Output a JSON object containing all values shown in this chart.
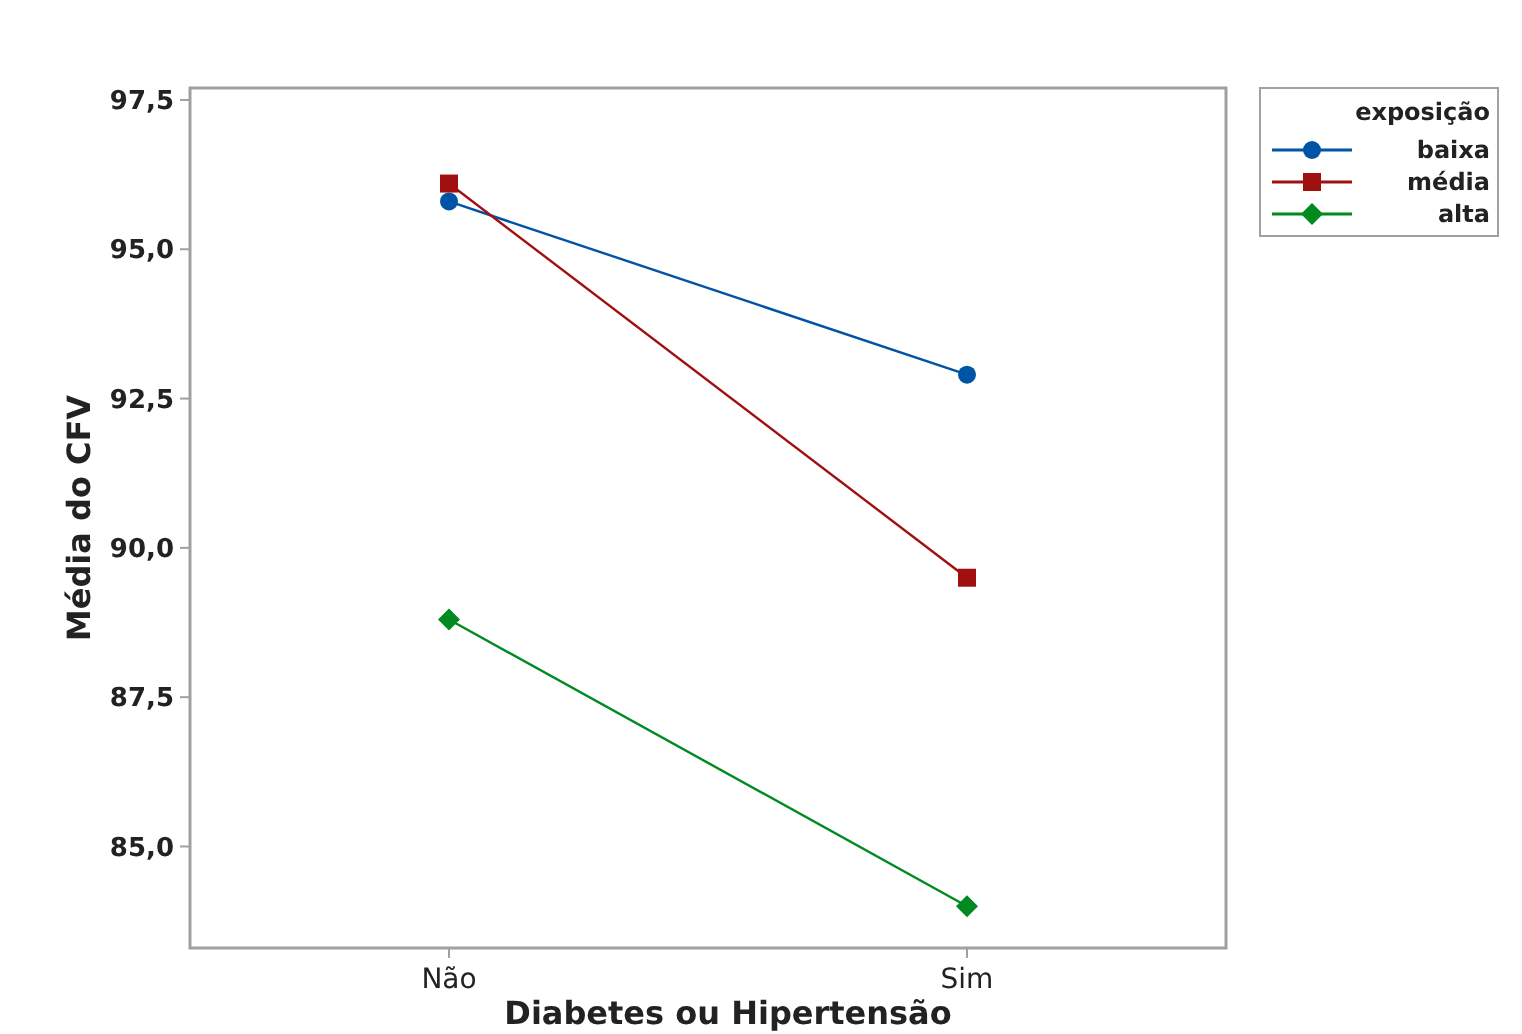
{
  "chart_data": {
    "type": "line",
    "xlabel": "Diabetes ou Hipertensão",
    "ylabel": "Média do CFV",
    "legend_title": "exposição",
    "categories": [
      "Não",
      "Sim"
    ],
    "series": [
      {
        "name": "baixa",
        "color": "#0054a6",
        "marker": "circle",
        "values": [
          95.8,
          92.9
        ]
      },
      {
        "name": "média",
        "color": "#a01010",
        "marker": "square",
        "values": [
          96.1,
          89.5
        ]
      },
      {
        "name": "alta",
        "color": "#008a20",
        "marker": "diamond",
        "values": [
          88.8,
          84.0
        ]
      }
    ],
    "ylim": [
      83.3,
      97.7
    ],
    "yticks": [
      {
        "value": 85,
        "label": "85,0"
      },
      {
        "value": 87.5,
        "label": "87,5"
      },
      {
        "value": 90,
        "label": "90,0"
      },
      {
        "value": 92.5,
        "label": "92,5"
      },
      {
        "value": 95,
        "label": "95,0"
      },
      {
        "value": 97.5,
        "label": "97,5"
      }
    ],
    "grid": false,
    "legend": "top right"
  }
}
